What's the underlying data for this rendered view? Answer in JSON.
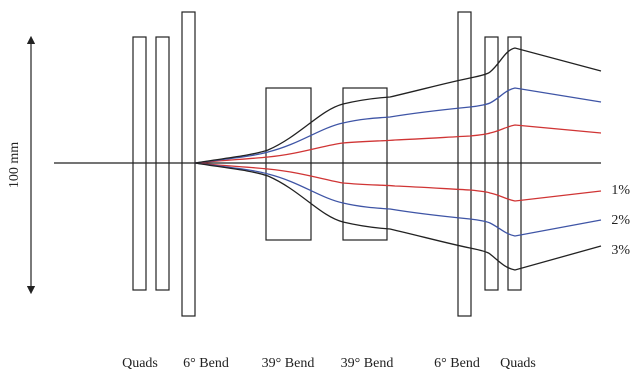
{
  "scale": {
    "label": "100 mm"
  },
  "elements": {
    "quads_left": "Quads",
    "bend_6_left": "6° Bend",
    "bend_39_a": "39° Bend",
    "bend_39_b": "39° Bend",
    "bend_6_right": "6° Bend",
    "quads_right": "Quads"
  },
  "trajectories": [
    {
      "label": "1%",
      "color": "#d03535"
    },
    {
      "label": "2%",
      "color": "#3f55a6"
    },
    {
      "label": "3%",
      "color": "#222222"
    }
  ]
}
